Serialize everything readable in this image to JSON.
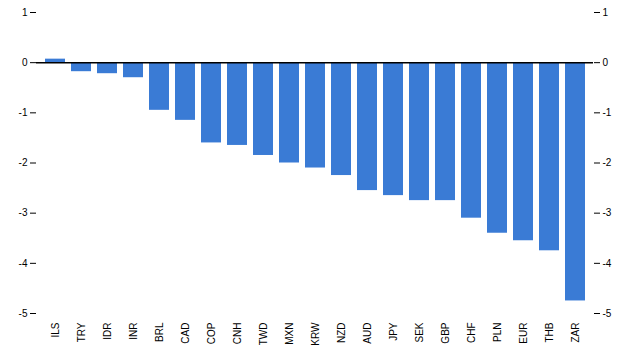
{
  "chart_data": {
    "type": "bar",
    "categories": [
      "ILS",
      "TRY",
      "IDR",
      "INR",
      "BRL",
      "CAD",
      "COP",
      "CNH",
      "TWD",
      "MXN",
      "KRW",
      "NZD",
      "AUD",
      "JPY",
      "SEK",
      "GBP",
      "CHF",
      "PLN",
      "EUR",
      "THB",
      "ZAR"
    ],
    "values": [
      0.07,
      -0.18,
      -0.22,
      -0.3,
      -0.95,
      -1.15,
      -1.6,
      -1.65,
      -1.85,
      -2.0,
      -2.1,
      -2.25,
      -2.55,
      -2.65,
      -2.75,
      -2.75,
      -3.1,
      -3.4,
      -3.55,
      -3.75,
      -4.75
    ],
    "color": "#3a7bd5",
    "ylim": [
      -5,
      1
    ],
    "yticks": [
      -5,
      -4,
      -3,
      -2,
      -1,
      0,
      1
    ],
    "y2lim": [
      -5,
      1
    ],
    "y2ticks": [
      -5,
      -4,
      -3,
      -2,
      -1,
      0,
      1
    ],
    "grid": false
  }
}
